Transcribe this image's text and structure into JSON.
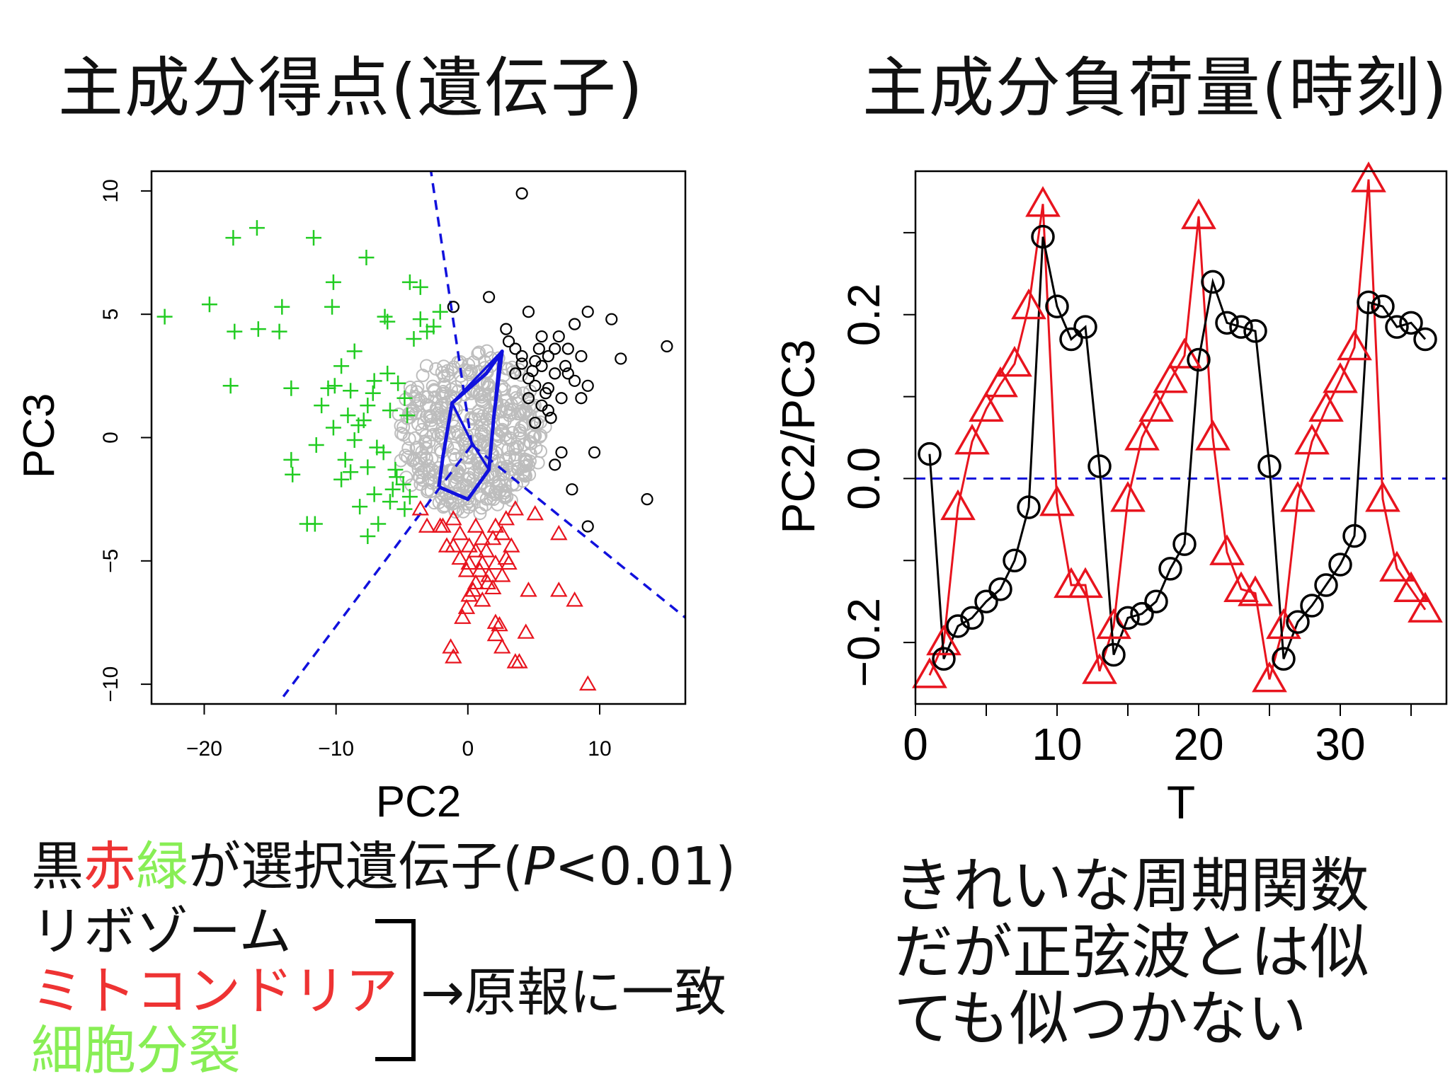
{
  "titles": {
    "left": "主成分得点(遺伝子)",
    "right": "主成分負荷量(時刻)"
  },
  "colors": {
    "black": "#000000",
    "red": "#e8141e",
    "green": "#22cc22",
    "gray": "#bdbdbd",
    "blue": "#1111dd",
    "note_red": "#ee3333",
    "note_green": "#88ee55"
  },
  "notes": {
    "line1_part1": "黒",
    "line1_part2": "赤",
    "line1_part3": "緑",
    "line1_part4": "が選択遺伝子(",
    "line1_p": "P",
    "line1_part5": "<0.01)",
    "item1": "リボゾーム",
    "item2": "ミトコンドリア",
    "item3": "細胞分裂",
    "arrow_text": "→原報に一致"
  },
  "right_notes": [
    "きれいな周期関数",
    "だが正弦波とは似",
    "ても似つかない"
  ],
  "chart_data": [
    {
      "type": "scatter",
      "xlabel": "PC2",
      "ylabel": "PC3",
      "xlim": [
        -24,
        16.5
      ],
      "ylim": [
        -10.8,
        10.8
      ],
      "xticks": [
        -20,
        -10,
        0,
        10
      ],
      "xtick_labels": [
        "−20",
        "−10",
        "0",
        "10"
      ],
      "yticks": [
        -10,
        -5,
        0,
        5,
        10
      ],
      "ytick_labels": [
        "−10",
        "−5",
        "0",
        "5",
        "10"
      ],
      "grid": false,
      "series": [
        {
          "marker": "plus",
          "color": "#22cc22",
          "points": [
            [
              -16,
              8.5
            ],
            [
              -17.8,
              8.1
            ],
            [
              -11.7,
              8.1
            ],
            [
              -7.7,
              7.3
            ],
            [
              -4.4,
              6.3
            ],
            [
              -10.2,
              6.3
            ],
            [
              -10.3,
              5.3
            ],
            [
              -14.1,
              5.3
            ],
            [
              -19.6,
              5.4
            ],
            [
              -23,
              4.9
            ],
            [
              -3.6,
              6.1
            ],
            [
              -2.1,
              5.1
            ],
            [
              -6.3,
              4.9
            ],
            [
              -3.6,
              4.8
            ],
            [
              -6.1,
              4.7
            ],
            [
              -15.9,
              4.4
            ],
            [
              -17.7,
              4.3
            ],
            [
              -14.3,
              4.3
            ],
            [
              -3.1,
              4.3
            ],
            [
              -2.6,
              4.5
            ],
            [
              -4.1,
              4.0
            ],
            [
              -8.6,
              3.5
            ],
            [
              -9.6,
              2.9
            ],
            [
              -18,
              2.1
            ],
            [
              -13.4,
              2.0
            ],
            [
              -10.1,
              2.1
            ],
            [
              -6.1,
              2.6
            ],
            [
              -7.1,
              2.3
            ],
            [
              -8.9,
              1.9
            ],
            [
              -5.3,
              2.2
            ],
            [
              -10.6,
              2.0
            ],
            [
              -4.8,
              1.6
            ],
            [
              -7.6,
              1.3
            ],
            [
              -5.9,
              1.1
            ],
            [
              -9.1,
              0.9
            ],
            [
              -7.9,
              0.7
            ],
            [
              -10.2,
              0.4
            ],
            [
              -8.3,
              0.5
            ],
            [
              -4.6,
              0.9
            ],
            [
              -8.6,
              -0.1
            ],
            [
              -11.5,
              -0.3
            ],
            [
              -13.4,
              -0.9
            ],
            [
              -6.4,
              -0.6
            ],
            [
              -9.3,
              -0.9
            ],
            [
              -7.6,
              -1.2
            ],
            [
              -13.3,
              -1.5
            ],
            [
              -8.9,
              -1.4
            ],
            [
              -5.5,
              -1.3
            ],
            [
              -4.9,
              -1.9
            ],
            [
              -5.7,
              -2.1
            ],
            [
              -7.1,
              -2.3
            ],
            [
              -4.4,
              -2.4
            ],
            [
              -5.9,
              -2.6
            ],
            [
              -8.2,
              -2.8
            ],
            [
              -4.8,
              -2.9
            ],
            [
              -12.2,
              -3.5
            ],
            [
              -11.6,
              -3.5
            ],
            [
              -6.8,
              -3.5
            ],
            [
              -7.6,
              -4.0
            ],
            [
              -5.4,
              -1.6
            ],
            [
              -9.6,
              -1.7
            ],
            [
              -6.9,
              -0.4
            ],
            [
              -11.1,
              1.3
            ],
            [
              -7.2,
              1.8
            ]
          ]
        },
        {
          "marker": "triangle",
          "color": "#e8141e",
          "points": [
            [
              -3.6,
              -2.9
            ],
            [
              -3.1,
              -3.6
            ],
            [
              -2.1,
              -3.6
            ],
            [
              -1.1,
              -3.3
            ],
            [
              -0.6,
              -3.9
            ],
            [
              -1.6,
              -4.4
            ],
            [
              -1.1,
              -4.4
            ],
            [
              0.1,
              -4.4
            ],
            [
              1.1,
              -4.1
            ],
            [
              2.1,
              -3.6
            ],
            [
              2.9,
              -3.3
            ],
            [
              0.6,
              -3.6
            ],
            [
              1.9,
              -4.1
            ],
            [
              2.6,
              -3.9
            ],
            [
              1.4,
              -4.6
            ],
            [
              0.6,
              -4.6
            ],
            [
              0.1,
              -5.1
            ],
            [
              1.1,
              -5.1
            ],
            [
              2.1,
              -5.1
            ],
            [
              3.1,
              -5.1
            ],
            [
              -0.1,
              -5.4
            ],
            [
              1.6,
              -5.6
            ],
            [
              2.6,
              -5.6
            ],
            [
              0.6,
              -5.9
            ],
            [
              1.9,
              -6.1
            ],
            [
              0.1,
              -6.4
            ],
            [
              1.1,
              -6.6
            ],
            [
              -0.1,
              -6.9
            ],
            [
              4.6,
              -6.2
            ],
            [
              6.9,
              -6.2
            ],
            [
              8.1,
              -6.6
            ],
            [
              -0.4,
              -7.3
            ],
            [
              2.1,
              -7.5
            ],
            [
              2.4,
              -7.6
            ],
            [
              2.1,
              -8.0
            ],
            [
              4.4,
              -7.9
            ],
            [
              -1.3,
              -8.5
            ],
            [
              2.6,
              -8.5
            ],
            [
              -1.1,
              -8.9
            ],
            [
              3.6,
              -9.1
            ],
            [
              3.9,
              -9.1
            ],
            [
              9.1,
              -10.0
            ],
            [
              5.1,
              -3.1
            ],
            [
              6.9,
              -3.9
            ],
            [
              3.6,
              -2.9
            ],
            [
              -1.9,
              -3.6
            ],
            [
              -0.6,
              -4.9
            ],
            [
              2.9,
              -4.9
            ],
            [
              0.9,
              -5.4
            ],
            [
              1.5,
              -5.9
            ],
            [
              3.3,
              -4.4
            ],
            [
              0.4,
              -6.2
            ]
          ]
        },
        {
          "marker": "circle",
          "color": "#000000",
          "points": [
            [
              4.1,
              9.9
            ],
            [
              -1.1,
              5.3
            ],
            [
              1.6,
              5.7
            ],
            [
              4.6,
              5.1
            ],
            [
              9.1,
              5.1
            ],
            [
              10.9,
              4.8
            ],
            [
              8.1,
              4.6
            ],
            [
              6.9,
              4.1
            ],
            [
              5.6,
              4.1
            ],
            [
              3.1,
              3.9
            ],
            [
              2.9,
              4.4
            ],
            [
              3.6,
              3.6
            ],
            [
              4.1,
              3.3
            ],
            [
              5.1,
              3.1
            ],
            [
              6.1,
              3.3
            ],
            [
              6.6,
              3.6
            ],
            [
              7.6,
              3.6
            ],
            [
              8.6,
              3.3
            ],
            [
              11.6,
              3.2
            ],
            [
              15.1,
              3.7
            ],
            [
              5.6,
              2.9
            ],
            [
              6.6,
              2.6
            ],
            [
              7.6,
              2.6
            ],
            [
              8.1,
              2.3
            ],
            [
              9.1,
              2.1
            ],
            [
              4.6,
              2.4
            ],
            [
              3.6,
              2.6
            ],
            [
              5.1,
              2.1
            ],
            [
              6.1,
              2.0
            ],
            [
              7.1,
              1.6
            ],
            [
              8.6,
              1.6
            ],
            [
              4.6,
              1.6
            ],
            [
              5.6,
              1.3
            ],
            [
              6.1,
              1.1
            ],
            [
              5.1,
              0.6
            ],
            [
              6.3,
              0.8
            ],
            [
              7.1,
              -0.6
            ],
            [
              9.6,
              -0.6
            ],
            [
              7.9,
              -2.1
            ],
            [
              13.6,
              -2.5
            ],
            [
              9.1,
              -3.6
            ],
            [
              6.6,
              -1.1
            ],
            [
              4.1,
              3.0
            ],
            [
              5.9,
              1.8
            ],
            [
              7.4,
              2.9
            ],
            [
              5.4,
              3.6
            ],
            [
              4.9,
              2.7
            ]
          ]
        }
      ]
    },
    {
      "type": "line",
      "xlabel": "T",
      "ylabel": "PC2/PC3",
      "xlim": [
        0,
        37.5
      ],
      "ylim": [
        -0.275,
        0.375
      ],
      "xticks": [
        0,
        10,
        20,
        30
      ],
      "xtick_labels": [
        "0",
        "10",
        "20",
        "30"
      ],
      "yticks": [
        -0.2,
        0.0,
        0.2
      ],
      "ytick_labels": [
        "−0.2",
        "0.0",
        "0.2"
      ],
      "grid": false,
      "x": [
        1,
        2,
        3,
        4,
        5,
        6,
        7,
        8,
        9,
        10,
        11,
        12,
        13,
        14,
        15,
        16,
        17,
        18,
        19,
        20,
        21,
        22,
        23,
        24,
        25,
        26,
        27,
        28,
        29,
        30,
        31,
        32,
        33,
        34,
        35,
        36
      ],
      "series": [
        {
          "marker": "circle",
          "color": "#000000",
          "values": [
            0.03,
            -0.22,
            -0.18,
            -0.17,
            -0.15,
            -0.135,
            -0.1,
            -0.035,
            0.295,
            0.21,
            0.17,
            0.185,
            0.015,
            -0.215,
            -0.17,
            -0.165,
            -0.15,
            -0.11,
            -0.08,
            0.145,
            0.24,
            0.19,
            0.185,
            0.18,
            0.015,
            -0.22,
            -0.175,
            -0.155,
            -0.13,
            -0.105,
            -0.07,
            0.215,
            0.21,
            0.185,
            0.19,
            0.17
          ]
        },
        {
          "marker": "triangle",
          "color": "#e8141e",
          "values": [
            -0.24,
            -0.2,
            -0.035,
            0.045,
            0.085,
            0.115,
            0.14,
            0.21,
            0.335,
            -0.03,
            -0.13,
            -0.13,
            -0.235,
            -0.18,
            -0.025,
            0.05,
            0.085,
            0.12,
            0.15,
            0.32,
            0.05,
            -0.09,
            -0.135,
            -0.14,
            -0.245,
            -0.18,
            -0.025,
            0.045,
            0.085,
            0.12,
            0.16,
            0.365,
            -0.025,
            -0.11,
            -0.135,
            -0.16
          ]
        }
      ]
    }
  ]
}
